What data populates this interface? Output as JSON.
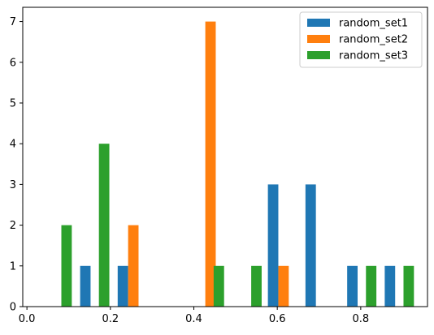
{
  "chart_data": {
    "type": "bar",
    "title": "",
    "xlabel": "",
    "ylabel": "",
    "xlim": [
      -0.01,
      0.96
    ],
    "ylim": [
      0,
      7.35
    ],
    "x_ticks": [
      0.0,
      0.2,
      0.4,
      0.6,
      0.8
    ],
    "x_tick_labels": [
      "0.0",
      "0.2",
      "0.4",
      "0.6",
      "0.8"
    ],
    "y_ticks": [
      0,
      1,
      2,
      3,
      4,
      5,
      6,
      7
    ],
    "y_tick_labels": [
      "0",
      "1",
      "2",
      "3",
      "4",
      "5",
      "6",
      "7"
    ],
    "bar_width": 0.025,
    "grid": false,
    "legend_position": "top-right",
    "series": [
      {
        "name": "random_set1",
        "color": "#1f77b4",
        "bars": [
          {
            "x": 0.14,
            "value": 1
          },
          {
            "x": 0.23,
            "value": 1
          },
          {
            "x": 0.59,
            "value": 3
          },
          {
            "x": 0.68,
            "value": 3
          },
          {
            "x": 0.78,
            "value": 1
          },
          {
            "x": 0.87,
            "value": 1
          }
        ]
      },
      {
        "name": "random_set2",
        "color": "#ff7f0e",
        "bars": [
          {
            "x": 0.255,
            "value": 2
          },
          {
            "x": 0.44,
            "value": 7
          },
          {
            "x": 0.615,
            "value": 1
          }
        ]
      },
      {
        "name": "random_set3",
        "color": "#2ca02c",
        "bars": [
          {
            "x": 0.095,
            "value": 2
          },
          {
            "x": 0.185,
            "value": 4
          },
          {
            "x": 0.46,
            "value": 1
          },
          {
            "x": 0.55,
            "value": 1
          },
          {
            "x": 0.825,
            "value": 1
          },
          {
            "x": 0.915,
            "value": 1
          }
        ]
      }
    ]
  }
}
